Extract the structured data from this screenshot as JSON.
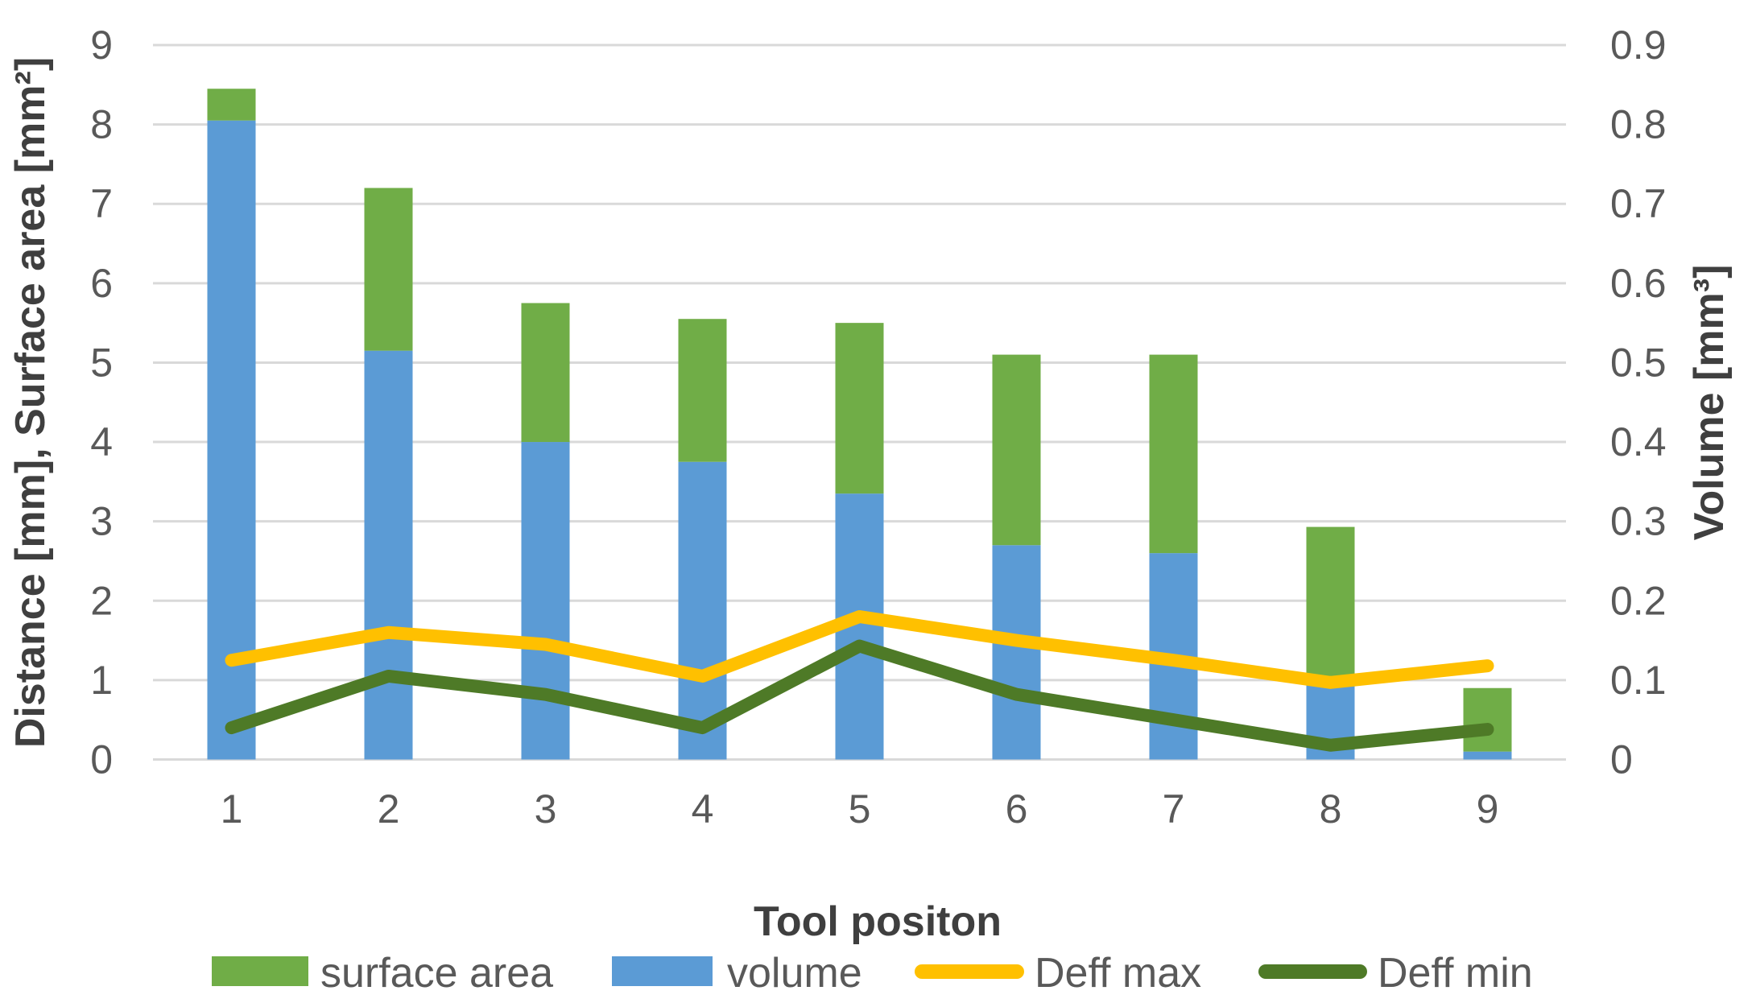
{
  "chart_data": {
    "type": "combo-stacked-bar-line",
    "title": "",
    "xlabel": "Tool positon",
    "ylabel_left": "Distance [mm], Surface area [mm²]",
    "ylabel_right": "Volume [mm³]",
    "categories": [
      "1",
      "2",
      "3",
      "4",
      "5",
      "6",
      "7",
      "8",
      "9"
    ],
    "axis_left": {
      "min": 0,
      "max": 9,
      "step": 1
    },
    "axis_right": {
      "min": 0,
      "max": 0.9,
      "step": 0.1
    },
    "grid": true,
    "legend_position": "bottom",
    "series": [
      {
        "name": "surface area",
        "type": "bar",
        "stack": "top",
        "axis": "left",
        "color": "#70AD47",
        "values": [
          0.4,
          2.05,
          1.75,
          1.8,
          2.15,
          2.4,
          2.5,
          1.98,
          0.8
        ]
      },
      {
        "name": "volume",
        "type": "bar",
        "stack": "bottom",
        "axis": "right",
        "color": "#5B9BD5",
        "values": [
          0.805,
          0.515,
          0.4,
          0.375,
          0.335,
          0.27,
          0.26,
          0.095,
          0.01
        ]
      },
      {
        "name": "Deff max",
        "type": "line",
        "axis": "left",
        "color": "#FFC000",
        "values": [
          1.25,
          1.6,
          1.45,
          1.05,
          1.8,
          1.5,
          1.25,
          0.97,
          1.18
        ]
      },
      {
        "name": "Deff min",
        "type": "line",
        "axis": "left",
        "color": "#4E7A27",
        "values": [
          0.4,
          1.05,
          0.82,
          0.4,
          1.43,
          0.82,
          0.5,
          0.18,
          0.38
        ]
      }
    ],
    "legend": {
      "items": [
        "surface area",
        "volume",
        "Deff max",
        "Deff min"
      ]
    },
    "colors": {
      "grid": "#D9D9D9",
      "tick_text": "#595959",
      "title_text": "#3F3F3F",
      "background": "#FFFFFF"
    }
  }
}
